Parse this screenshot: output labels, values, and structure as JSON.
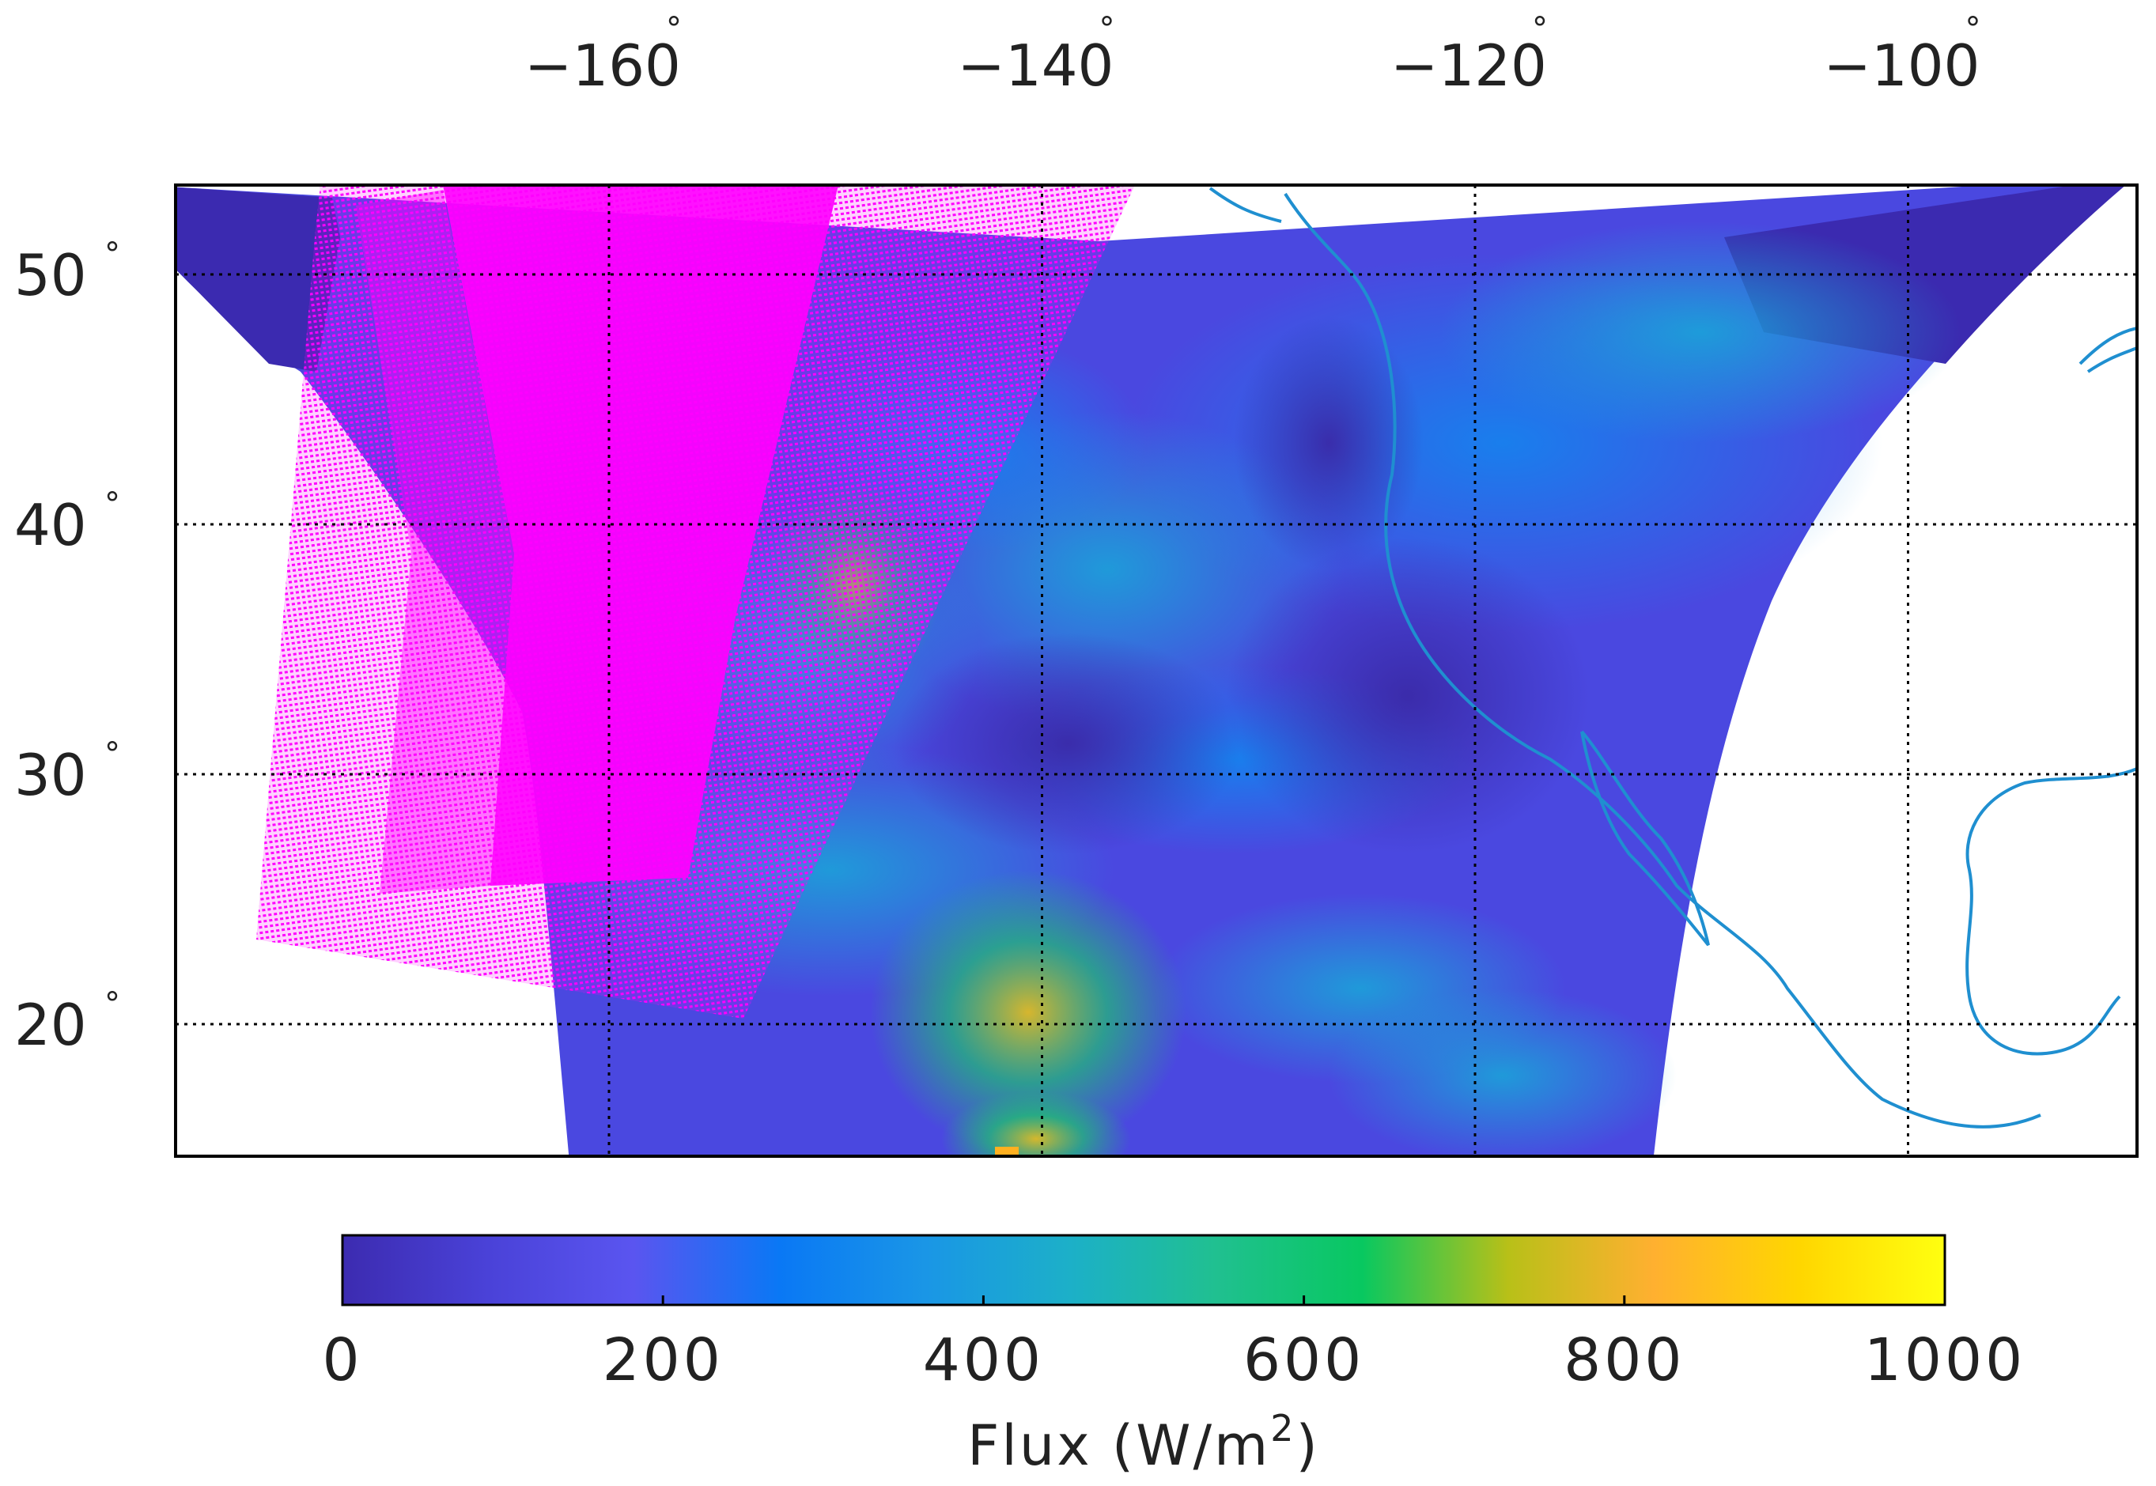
{
  "map": {
    "longitude_ticks": [
      {
        "value": -160,
        "label": "−160"
      },
      {
        "value": -140,
        "label": "−140"
      },
      {
        "value": -120,
        "label": "−120"
      },
      {
        "value": -100,
        "label": "−100"
      }
    ],
    "latitude_ticks": [
      {
        "value": 50,
        "label": "50"
      },
      {
        "value": 40,
        "label": "40"
      },
      {
        "value": 30,
        "label": "30"
      },
      {
        "value": 20,
        "label": "20"
      }
    ],
    "degree_symbol": "°",
    "grid": true,
    "coastline_color": "#1f8fd0",
    "swath_overlay_color": "#ff00ff"
  },
  "colorbar": {
    "ticks": [
      "0",
      "200",
      "400",
      "600",
      "800",
      "1000"
    ],
    "min": 0,
    "max": 1000,
    "title_prefix": "Flux (W/m",
    "title_superscript": "2",
    "title_suffix": ")",
    "colormap": [
      "#3c2bb0",
      "#4a42d8",
      "#5a55f0",
      "#0a78f5",
      "#1a96e6",
      "#1cb0c8",
      "#20c090",
      "#08c860",
      "#b8c018",
      "#ffb030",
      "#ffd600",
      "#ffff10"
    ]
  }
}
